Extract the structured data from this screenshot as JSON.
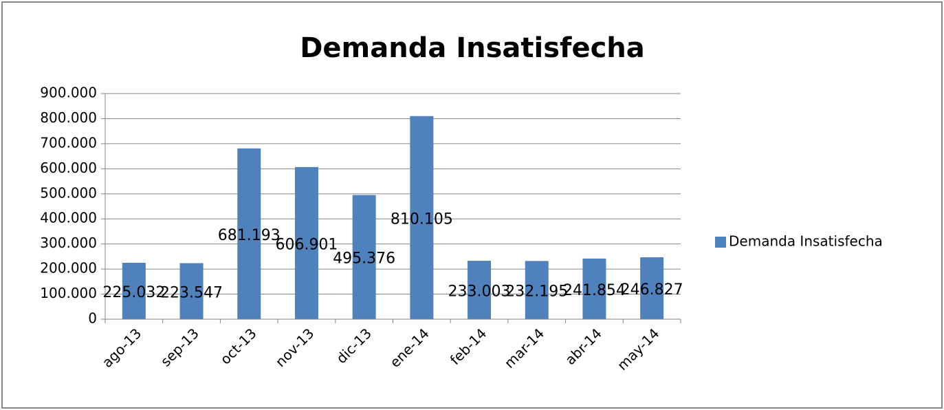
{
  "chart_data": {
    "type": "bar",
    "title": "Demanda Insatisfecha",
    "categories": [
      "ago-13",
      "sep-13",
      "oct-13",
      "nov-13",
      "dic-13",
      "ene-14",
      "feb-14",
      "mar-14",
      "abr-14",
      "may-14"
    ],
    "series": [
      {
        "name": "Demanda Insatisfecha",
        "color": "#4f81bd",
        "values": [
          225032,
          223547,
          681193,
          606901,
          495376,
          810105,
          233003,
          232195,
          241854,
          246827
        ],
        "value_labels": [
          "225.032",
          "223.547",
          "681.193",
          "606.901",
          "495.376",
          "810.105",
          "233.003",
          "232.195",
          "241.854",
          "246.827"
        ]
      }
    ],
    "ylim": [
      0,
      900000
    ],
    "yticks": [
      0,
      {
        "value": 100000,
        "label": "100.000"
      },
      {
        "value": 200000,
        "label": "200.000"
      },
      {
        "value": 300000,
        "label": "300.000"
      },
      {
        "value": 400000,
        "label": "400.000"
      },
      {
        "value": 500000,
        "label": "500.000"
      },
      {
        "value": 600000,
        "label": "600.000"
      },
      {
        "value": 700000,
        "label": "700.000"
      },
      {
        "value": 800000,
        "label": "800.000"
      },
      {
        "value": 900000,
        "label": "900.000"
      }
    ],
    "grid": true,
    "legend": "right"
  }
}
